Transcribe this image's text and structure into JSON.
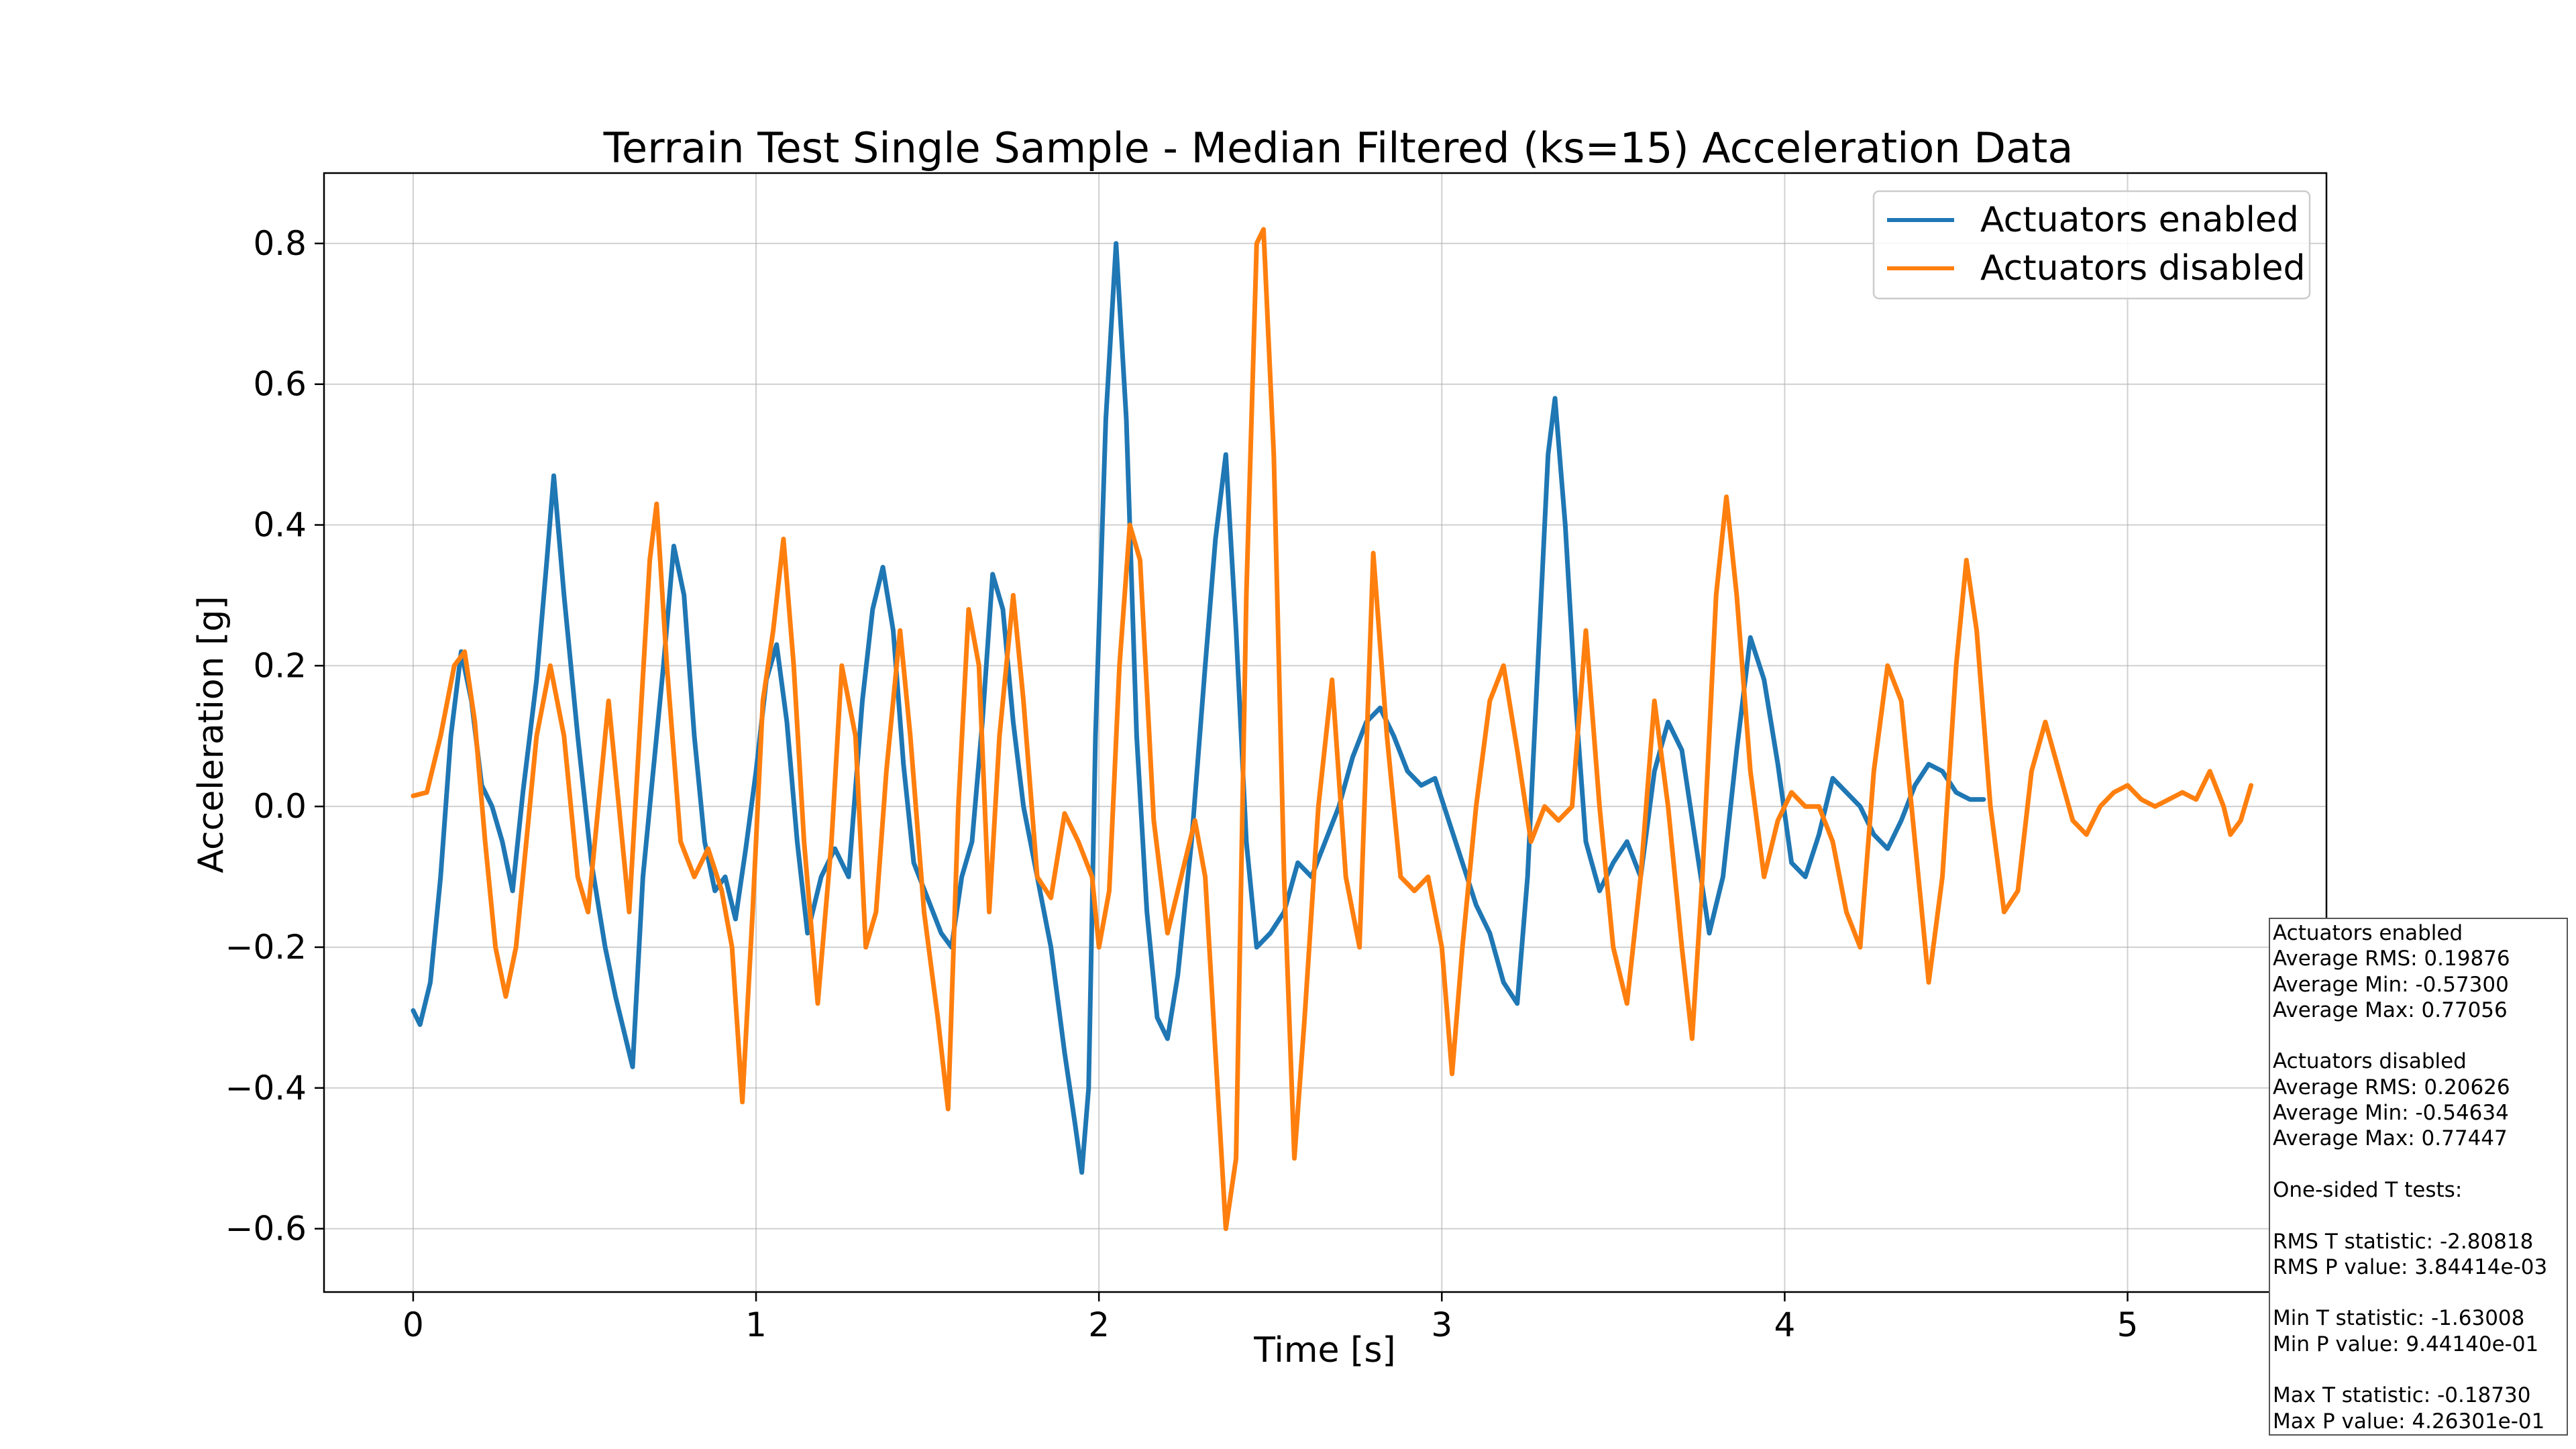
{
  "chart_data": {
    "type": "line",
    "title": "Terrain Test Single Sample - Median Filtered (ks=15) Acceleration Data",
    "xlabel": "Time [s]",
    "ylabel": "Acceleration [g]",
    "xlim": [
      -0.26,
      5.58
    ],
    "ylim": [
      -0.69,
      0.9
    ],
    "grid": true,
    "legend_position": "top-right",
    "x_ticks": [
      0,
      1,
      2,
      3,
      4,
      5
    ],
    "x_tick_labels": [
      "0",
      "1",
      "2",
      "3",
      "4",
      "5"
    ],
    "y_ticks": [
      0.8,
      0.6,
      0.4,
      0.2,
      0.0,
      -0.2,
      -0.4,
      -0.6
    ],
    "y_tick_labels": [
      "0.8",
      "0.6",
      "0.4",
      "0.2",
      "0.0",
      "−0.2",
      "−0.4",
      "−0.6"
    ],
    "series": [
      {
        "name": "Actuators enabled",
        "color": "#1f77b4",
        "points": [
          [
            0,
            -0.29
          ],
          [
            0.02,
            -0.31
          ],
          [
            0.05,
            -0.25
          ],
          [
            0.08,
            -0.1
          ],
          [
            0.11,
            0.1
          ],
          [
            0.14,
            0.22
          ],
          [
            0.17,
            0.15
          ],
          [
            0.2,
            0.03
          ],
          [
            0.23,
            0.0
          ],
          [
            0.26,
            -0.05
          ],
          [
            0.29,
            -0.12
          ],
          [
            0.32,
            0.02
          ],
          [
            0.36,
            0.18
          ],
          [
            0.39,
            0.35
          ],
          [
            0.41,
            0.47
          ],
          [
            0.44,
            0.3
          ],
          [
            0.48,
            0.1
          ],
          [
            0.52,
            -0.08
          ],
          [
            0.56,
            -0.2
          ],
          [
            0.59,
            -0.27
          ],
          [
            0.62,
            -0.33
          ],
          [
            0.64,
            -0.37
          ],
          [
            0.67,
            -0.1
          ],
          [
            0.7,
            0.05
          ],
          [
            0.73,
            0.2
          ],
          [
            0.76,
            0.37
          ],
          [
            0.79,
            0.3
          ],
          [
            0.82,
            0.1
          ],
          [
            0.85,
            -0.05
          ],
          [
            0.88,
            -0.12
          ],
          [
            0.91,
            -0.1
          ],
          [
            0.94,
            -0.16
          ],
          [
            0.97,
            -0.06
          ],
          [
            1.0,
            0.05
          ],
          [
            1.03,
            0.18
          ],
          [
            1.06,
            0.23
          ],
          [
            1.09,
            0.12
          ],
          [
            1.12,
            -0.05
          ],
          [
            1.15,
            -0.18
          ],
          [
            1.19,
            -0.1
          ],
          [
            1.23,
            -0.06
          ],
          [
            1.27,
            -0.1
          ],
          [
            1.31,
            0.15
          ],
          [
            1.34,
            0.28
          ],
          [
            1.37,
            0.34
          ],
          [
            1.4,
            0.25
          ],
          [
            1.43,
            0.06
          ],
          [
            1.46,
            -0.08
          ],
          [
            1.5,
            -0.13
          ],
          [
            1.54,
            -0.18
          ],
          [
            1.57,
            -0.2
          ],
          [
            1.6,
            -0.1
          ],
          [
            1.63,
            -0.05
          ],
          [
            1.66,
            0.12
          ],
          [
            1.69,
            0.33
          ],
          [
            1.72,
            0.28
          ],
          [
            1.75,
            0.12
          ],
          [
            1.78,
            0.0
          ],
          [
            1.82,
            -0.1
          ],
          [
            1.86,
            -0.2
          ],
          [
            1.9,
            -0.35
          ],
          [
            1.93,
            -0.45
          ],
          [
            1.95,
            -0.52
          ],
          [
            1.97,
            -0.4
          ],
          [
            1.99,
            0.1
          ],
          [
            2.02,
            0.55
          ],
          [
            2.05,
            0.8
          ],
          [
            2.08,
            0.55
          ],
          [
            2.11,
            0.1
          ],
          [
            2.14,
            -0.15
          ],
          [
            2.17,
            -0.3
          ],
          [
            2.2,
            -0.33
          ],
          [
            2.23,
            -0.24
          ],
          [
            2.27,
            -0.05
          ],
          [
            2.31,
            0.2
          ],
          [
            2.34,
            0.38
          ],
          [
            2.37,
            0.5
          ],
          [
            2.4,
            0.25
          ],
          [
            2.43,
            -0.05
          ],
          [
            2.46,
            -0.2
          ],
          [
            2.5,
            -0.18
          ],
          [
            2.54,
            -0.15
          ],
          [
            2.58,
            -0.08
          ],
          [
            2.62,
            -0.1
          ],
          [
            2.66,
            -0.05
          ],
          [
            2.7,
            0.0
          ],
          [
            2.74,
            0.07
          ],
          [
            2.78,
            0.12
          ],
          [
            2.82,
            0.14
          ],
          [
            2.86,
            0.1
          ],
          [
            2.9,
            0.05
          ],
          [
            2.94,
            0.03
          ],
          [
            2.98,
            0.04
          ],
          [
            3.02,
            -0.02
          ],
          [
            3.06,
            -0.08
          ],
          [
            3.1,
            -0.14
          ],
          [
            3.14,
            -0.18
          ],
          [
            3.18,
            -0.25
          ],
          [
            3.22,
            -0.28
          ],
          [
            3.25,
            -0.1
          ],
          [
            3.28,
            0.2
          ],
          [
            3.31,
            0.5
          ],
          [
            3.33,
            0.58
          ],
          [
            3.36,
            0.4
          ],
          [
            3.39,
            0.15
          ],
          [
            3.42,
            -0.05
          ],
          [
            3.46,
            -0.12
          ],
          [
            3.5,
            -0.08
          ],
          [
            3.54,
            -0.05
          ],
          [
            3.58,
            -0.1
          ],
          [
            3.62,
            0.05
          ],
          [
            3.66,
            0.12
          ],
          [
            3.7,
            0.08
          ],
          [
            3.74,
            -0.05
          ],
          [
            3.78,
            -0.18
          ],
          [
            3.82,
            -0.1
          ],
          [
            3.86,
            0.08
          ],
          [
            3.9,
            0.24
          ],
          [
            3.94,
            0.18
          ],
          [
            3.98,
            0.06
          ],
          [
            4.02,
            -0.08
          ],
          [
            4.06,
            -0.1
          ],
          [
            4.1,
            -0.04
          ],
          [
            4.14,
            0.04
          ],
          [
            4.18,
            0.02
          ],
          [
            4.22,
            0.0
          ],
          [
            4.26,
            -0.04
          ],
          [
            4.3,
            -0.06
          ],
          [
            4.34,
            -0.02
          ],
          [
            4.38,
            0.03
          ],
          [
            4.42,
            0.06
          ],
          [
            4.46,
            0.05
          ],
          [
            4.5,
            0.02
          ],
          [
            4.54,
            0.01
          ],
          [
            4.58,
            0.01
          ]
        ]
      },
      {
        "name": "Actuators disabled",
        "color": "#ff7f0e",
        "points": [
          [
            0,
            0.015
          ],
          [
            0.04,
            0.02
          ],
          [
            0.08,
            0.1
          ],
          [
            0.12,
            0.2
          ],
          [
            0.15,
            0.22
          ],
          [
            0.18,
            0.12
          ],
          [
            0.21,
            -0.05
          ],
          [
            0.24,
            -0.2
          ],
          [
            0.27,
            -0.27
          ],
          [
            0.3,
            -0.2
          ],
          [
            0.33,
            -0.05
          ],
          [
            0.36,
            0.1
          ],
          [
            0.4,
            0.2
          ],
          [
            0.44,
            0.1
          ],
          [
            0.48,
            -0.1
          ],
          [
            0.51,
            -0.15
          ],
          [
            0.54,
            0.0
          ],
          [
            0.57,
            0.15
          ],
          [
            0.6,
            0.0
          ],
          [
            0.63,
            -0.15
          ],
          [
            0.66,
            0.1
          ],
          [
            0.69,
            0.35
          ],
          [
            0.71,
            0.43
          ],
          [
            0.74,
            0.2
          ],
          [
            0.78,
            -0.05
          ],
          [
            0.82,
            -0.1
          ],
          [
            0.86,
            -0.06
          ],
          [
            0.9,
            -0.12
          ],
          [
            0.93,
            -0.2
          ],
          [
            0.96,
            -0.42
          ],
          [
            0.99,
            -0.15
          ],
          [
            1.02,
            0.15
          ],
          [
            1.05,
            0.25
          ],
          [
            1.08,
            0.38
          ],
          [
            1.11,
            0.2
          ],
          [
            1.14,
            -0.05
          ],
          [
            1.18,
            -0.28
          ],
          [
            1.22,
            -0.05
          ],
          [
            1.25,
            0.2
          ],
          [
            1.29,
            0.1
          ],
          [
            1.32,
            -0.2
          ],
          [
            1.35,
            -0.15
          ],
          [
            1.38,
            0.05
          ],
          [
            1.42,
            0.25
          ],
          [
            1.45,
            0.1
          ],
          [
            1.49,
            -0.15
          ],
          [
            1.53,
            -0.3
          ],
          [
            1.56,
            -0.43
          ],
          [
            1.59,
            0.0
          ],
          [
            1.62,
            0.28
          ],
          [
            1.65,
            0.2
          ],
          [
            1.68,
            -0.15
          ],
          [
            1.71,
            0.1
          ],
          [
            1.75,
            0.3
          ],
          [
            1.78,
            0.15
          ],
          [
            1.82,
            -0.1
          ],
          [
            1.86,
            -0.13
          ],
          [
            1.9,
            -0.01
          ],
          [
            1.94,
            -0.05
          ],
          [
            1.98,
            -0.1
          ],
          [
            2.0,
            -0.2
          ],
          [
            2.03,
            -0.12
          ],
          [
            2.06,
            0.2
          ],
          [
            2.09,
            0.4
          ],
          [
            2.12,
            0.35
          ],
          [
            2.16,
            -0.02
          ],
          [
            2.2,
            -0.18
          ],
          [
            2.24,
            -0.1
          ],
          [
            2.28,
            -0.02
          ],
          [
            2.31,
            -0.1
          ],
          [
            2.34,
            -0.35
          ],
          [
            2.37,
            -0.6
          ],
          [
            2.4,
            -0.5
          ],
          [
            2.43,
            0.3
          ],
          [
            2.46,
            0.8
          ],
          [
            2.48,
            0.82
          ],
          [
            2.51,
            0.5
          ],
          [
            2.54,
            -0.1
          ],
          [
            2.57,
            -0.5
          ],
          [
            2.6,
            -0.3
          ],
          [
            2.64,
            0.0
          ],
          [
            2.68,
            0.18
          ],
          [
            2.72,
            -0.1
          ],
          [
            2.76,
            -0.2
          ],
          [
            2.8,
            0.36
          ],
          [
            2.84,
            0.1
          ],
          [
            2.88,
            -0.1
          ],
          [
            2.92,
            -0.12
          ],
          [
            2.96,
            -0.1
          ],
          [
            3.0,
            -0.2
          ],
          [
            3.03,
            -0.38
          ],
          [
            3.06,
            -0.2
          ],
          [
            3.1,
            0.0
          ],
          [
            3.14,
            0.15
          ],
          [
            3.18,
            0.2
          ],
          [
            3.22,
            0.08
          ],
          [
            3.26,
            -0.05
          ],
          [
            3.3,
            0.0
          ],
          [
            3.34,
            -0.02
          ],
          [
            3.38,
            0.0
          ],
          [
            3.42,
            0.25
          ],
          [
            3.46,
            0.0
          ],
          [
            3.5,
            -0.2
          ],
          [
            3.54,
            -0.28
          ],
          [
            3.58,
            -0.1
          ],
          [
            3.62,
            0.15
          ],
          [
            3.66,
            0.0
          ],
          [
            3.7,
            -0.2
          ],
          [
            3.73,
            -0.33
          ],
          [
            3.76,
            -0.1
          ],
          [
            3.8,
            0.3
          ],
          [
            3.83,
            0.44
          ],
          [
            3.86,
            0.3
          ],
          [
            3.9,
            0.05
          ],
          [
            3.94,
            -0.1
          ],
          [
            3.98,
            -0.02
          ],
          [
            4.02,
            0.02
          ],
          [
            4.06,
            0.0
          ],
          [
            4.1,
            0.0
          ],
          [
            4.14,
            -0.05
          ],
          [
            4.18,
            -0.15
          ],
          [
            4.22,
            -0.2
          ],
          [
            4.26,
            0.05
          ],
          [
            4.3,
            0.2
          ],
          [
            4.34,
            0.15
          ],
          [
            4.38,
            -0.05
          ],
          [
            4.42,
            -0.25
          ],
          [
            4.46,
            -0.1
          ],
          [
            4.5,
            0.2
          ],
          [
            4.53,
            0.35
          ],
          [
            4.56,
            0.25
          ],
          [
            4.6,
            0.0
          ],
          [
            4.64,
            -0.15
          ],
          [
            4.68,
            -0.12
          ],
          [
            4.72,
            0.05
          ],
          [
            4.76,
            0.12
          ],
          [
            4.8,
            0.05
          ],
          [
            4.84,
            -0.02
          ],
          [
            4.88,
            -0.04
          ],
          [
            4.92,
            0.0
          ],
          [
            4.96,
            0.02
          ],
          [
            5.0,
            0.03
          ],
          [
            5.04,
            0.01
          ],
          [
            5.08,
            0.0
          ],
          [
            5.12,
            0.01
          ],
          [
            5.16,
            0.02
          ],
          [
            5.2,
            0.01
          ],
          [
            5.24,
            0.05
          ],
          [
            5.28,
            0.0
          ],
          [
            5.3,
            -0.04
          ],
          [
            5.33,
            -0.02
          ],
          [
            5.36,
            0.03
          ]
        ]
      }
    ]
  },
  "stats_box": {
    "lines": [
      "Actuators enabled",
      "Average RMS: 0.19876",
      "Average Min: -0.57300",
      "Average Max: 0.77056",
      "",
      "Actuators disabled",
      "Average RMS: 0.20626",
      "Average Min: -0.54634",
      "Average Max: 0.77447",
      "",
      "One-sided T tests:",
      "",
      "RMS T statistic: -2.80818",
      "RMS P value: 3.84414e-03",
      "",
      "Min T statistic: -1.63008",
      "Min P value: 9.44140e-01",
      "",
      "Max T statistic: -0.18730",
      "Max P value: 4.26301e-01"
    ]
  }
}
